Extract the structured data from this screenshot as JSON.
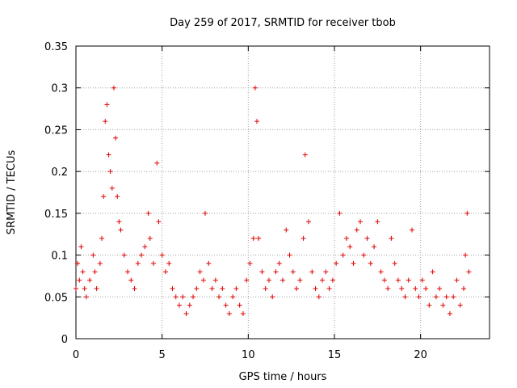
{
  "chart_data": {
    "type": "scatter",
    "title": "Day 259 of 2017, SRMTID for receiver tbob",
    "xlabel": "GPS time / hours",
    "ylabel": "SRMTID / TECUs",
    "xlim": [
      0,
      24
    ],
    "ylim": [
      0,
      0.35
    ],
    "xticks": [
      0,
      5,
      10,
      15,
      20
    ],
    "xtick_labels": [
      "0",
      "5",
      "10",
      "15",
      "20"
    ],
    "yticks": [
      0,
      0.05,
      0.1,
      0.15,
      0.2,
      0.25,
      0.3,
      0.35
    ],
    "ytick_labels": [
      "0",
      "0.05",
      "0.1",
      "0.15",
      "0.2",
      "0.25",
      "0.3",
      "0.35"
    ],
    "grid": true,
    "marker": "+",
    "marker_color": "#e00000",
    "series": [
      {
        "name": "SRMTID",
        "x": [
          0.0,
          0.1,
          0.2,
          0.3,
          0.4,
          0.5,
          0.6,
          0.8,
          1.0,
          1.1,
          1.2,
          1.4,
          1.5,
          1.6,
          1.7,
          1.8,
          1.9,
          2.0,
          2.1,
          2.2,
          2.3,
          2.4,
          2.5,
          2.6,
          2.8,
          3.0,
          3.2,
          3.4,
          3.6,
          3.8,
          4.0,
          4.2,
          4.3,
          4.5,
          4.7,
          4.8,
          5.0,
          5.2,
          5.4,
          5.6,
          5.8,
          6.0,
          6.2,
          6.4,
          6.6,
          6.8,
          7.0,
          7.2,
          7.4,
          7.5,
          7.7,
          7.9,
          8.1,
          8.3,
          8.5,
          8.7,
          8.9,
          9.1,
          9.3,
          9.5,
          9.7,
          9.9,
          10.1,
          10.3,
          10.4,
          10.5,
          10.6,
          10.8,
          11.0,
          11.2,
          11.4,
          11.6,
          11.8,
          12.0,
          12.2,
          12.4,
          12.6,
          12.8,
          13.0,
          13.2,
          13.3,
          13.5,
          13.7,
          13.9,
          14.1,
          14.3,
          14.5,
          14.7,
          14.9,
          15.1,
          15.3,
          15.5,
          15.7,
          15.9,
          16.1,
          16.3,
          16.5,
          16.7,
          16.9,
          17.1,
          17.3,
          17.5,
          17.7,
          17.9,
          18.1,
          18.3,
          18.5,
          18.7,
          18.9,
          19.1,
          19.3,
          19.5,
          19.7,
          19.9,
          20.1,
          20.3,
          20.5,
          20.7,
          20.9,
          21.1,
          21.3,
          21.5,
          21.7,
          21.9,
          22.1,
          22.3,
          22.5,
          22.6,
          22.7,
          22.8
        ],
        "y": [
          0.06,
          0.09,
          0.07,
          0.11,
          0.08,
          0.06,
          0.05,
          0.07,
          0.1,
          0.08,
          0.06,
          0.09,
          0.12,
          0.17,
          0.26,
          0.28,
          0.22,
          0.2,
          0.18,
          0.3,
          0.24,
          0.17,
          0.14,
          0.13,
          0.1,
          0.08,
          0.07,
          0.06,
          0.09,
          0.1,
          0.11,
          0.15,
          0.12,
          0.09,
          0.21,
          0.14,
          0.1,
          0.08,
          0.09,
          0.06,
          0.05,
          0.04,
          0.05,
          0.03,
          0.04,
          0.05,
          0.06,
          0.08,
          0.07,
          0.15,
          0.09,
          0.06,
          0.07,
          0.05,
          0.06,
          0.04,
          0.03,
          0.05,
          0.06,
          0.04,
          0.03,
          0.07,
          0.09,
          0.12,
          0.3,
          0.26,
          0.12,
          0.08,
          0.06,
          0.07,
          0.05,
          0.08,
          0.09,
          0.07,
          0.13,
          0.1,
          0.08,
          0.06,
          0.07,
          0.12,
          0.22,
          0.14,
          0.08,
          0.06,
          0.05,
          0.07,
          0.08,
          0.06,
          0.07,
          0.09,
          0.15,
          0.1,
          0.12,
          0.11,
          0.09,
          0.13,
          0.14,
          0.1,
          0.12,
          0.09,
          0.11,
          0.14,
          0.08,
          0.07,
          0.06,
          0.12,
          0.09,
          0.07,
          0.06,
          0.05,
          0.07,
          0.13,
          0.06,
          0.05,
          0.07,
          0.06,
          0.04,
          0.08,
          0.05,
          0.06,
          0.04,
          0.05,
          0.03,
          0.05,
          0.07,
          0.04,
          0.06,
          0.1,
          0.15,
          0.08
        ]
      }
    ]
  }
}
